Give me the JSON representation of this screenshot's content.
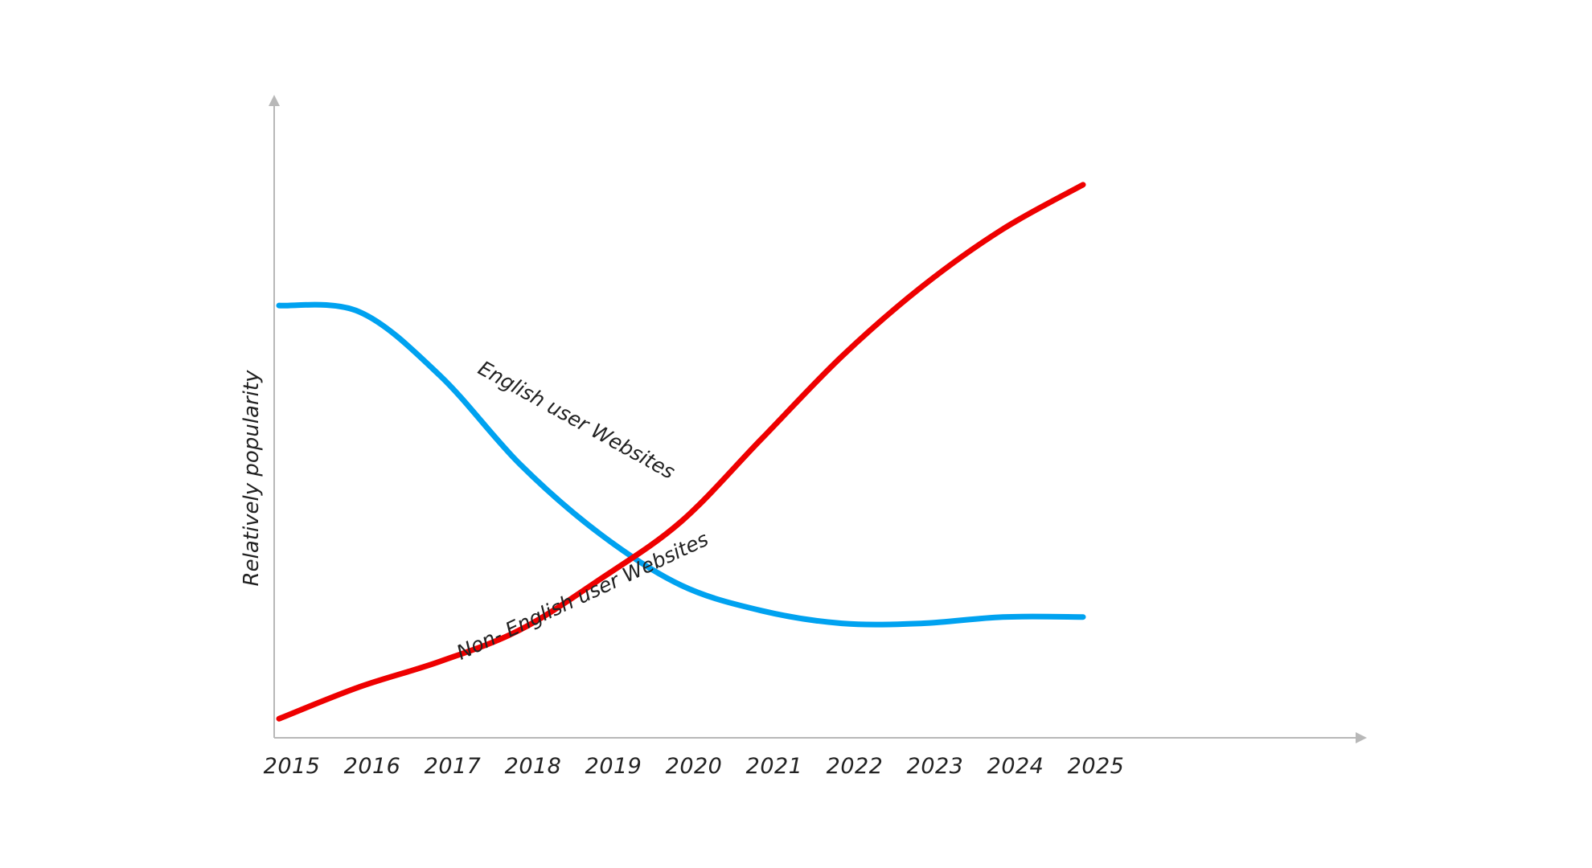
{
  "chart_data": {
    "type": "line",
    "title": "",
    "xlabel": "",
    "ylabel": "Relatively popularity",
    "categories": [
      "2015",
      "2016",
      "2017",
      "2018",
      "2019",
      "2020",
      "2021",
      "2022",
      "2023",
      "2024",
      "2025"
    ],
    "x_labels": [
      "2015",
      "2016",
      "2017",
      "2018",
      "2019",
      "2020",
      "2021",
      "2022",
      "2023",
      "2024",
      "2025"
    ],
    "ylim": [
      0,
      100
    ],
    "grid": false,
    "legend": "none",
    "series": [
      {
        "name": "English user Websites",
        "color": "#00a2f0",
        "label_text": "English user Websites",
        "values": [
          68,
          67,
          57,
          43,
          32,
          24,
          20,
          18,
          18,
          19,
          19
        ]
      },
      {
        "name": "Non- English user Websites",
        "color": "#ee0000",
        "label_text": "Non- English user Websites",
        "values": [
          3,
          8,
          12,
          17,
          25,
          34,
          47,
          60,
          71,
          80,
          87
        ]
      }
    ]
  }
}
